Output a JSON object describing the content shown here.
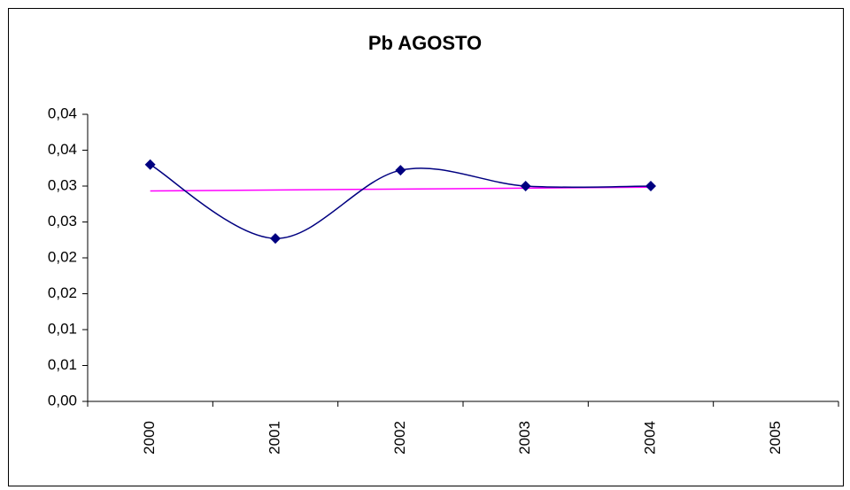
{
  "chart_data": {
    "type": "line",
    "title": "Pb AGOSTO",
    "categories": [
      "2000",
      "2001",
      "2002",
      "2003",
      "2004",
      "2005"
    ],
    "series": [
      {
        "color": "#000080",
        "values": [
          0.033,
          0.0227,
          0.0322,
          0.03,
          0.03,
          null
        ]
      }
    ],
    "trendline": {
      "type": "linear",
      "color": "#ff00ff"
    },
    "smooth": true,
    "ylim": [
      0,
      0.04
    ],
    "yticks": [
      {
        "value": 0,
        "label": "0,00"
      },
      {
        "value": 0.005,
        "label": "0,01"
      },
      {
        "value": 0.01,
        "label": "0,01"
      },
      {
        "value": 0.015,
        "label": "0,02"
      },
      {
        "value": 0.02,
        "label": "0,02"
      },
      {
        "value": 0.025,
        "label": "0,03"
      },
      {
        "value": 0.03,
        "label": "0,03"
      },
      {
        "value": 0.035,
        "label": "0,04"
      },
      {
        "value": 0.04,
        "label": "0,04"
      }
    ]
  }
}
